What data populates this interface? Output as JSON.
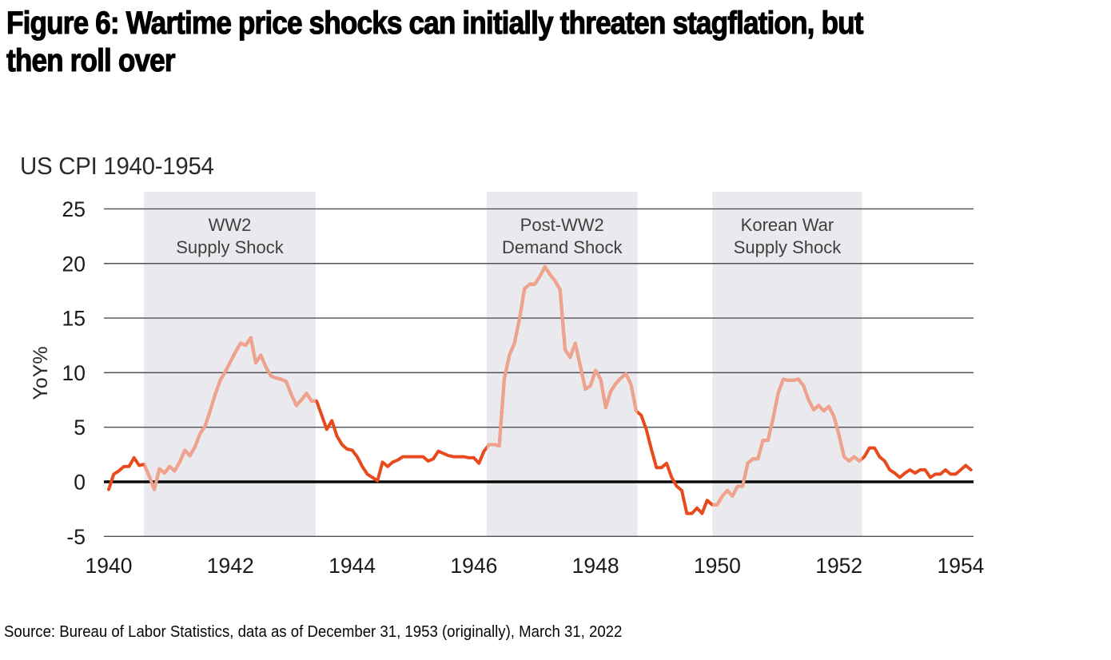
{
  "header": {
    "title_line1": "Figure 6: Wartime price shocks can initially threaten stagflation, but",
    "title_line2": "then roll over"
  },
  "chart": {
    "subtitle": "US CPI 1940-1954",
    "y_axis_label": "YoY%",
    "source": "Source: Bureau of Labor Statistics, data as of December 31, 1953 (originally), March 31, 2022"
  },
  "colors": {
    "line": "#e84a1e",
    "line_shaded": "#efa28d",
    "band": "#eaeaee",
    "grid": "#4f4f55",
    "zero_line": "#0a0a0a",
    "tick_text": "#1a1a1a",
    "band_label": "#3f3f3f",
    "subtitle_text": "#2b2b2b"
  },
  "chart_data": {
    "type": "line",
    "title": "US CPI 1940-1954",
    "xlabel": "",
    "ylabel": "YoY%",
    "x_start_year": 1940,
    "x_step_months": 1,
    "x_end": "1954-03",
    "xlim": [
      1939.95,
      1954.3
    ],
    "ylim": [
      -5,
      25
    ],
    "grid": "horizontal",
    "legend": "none",
    "y_ticks": [
      25,
      20,
      15,
      10,
      5,
      0,
      -5
    ],
    "x_tick_labels": [
      "1940",
      "1942",
      "1944",
      "1946",
      "1948",
      "1950",
      "1952",
      "1954"
    ],
    "series": [
      {
        "name": "US CPI YoY %",
        "frequency": "monthly Jan 1940 - Mar 1954",
        "values": [
          -0.7,
          0.7,
          1.0,
          1.4,
          1.4,
          2.2,
          1.5,
          1.6,
          0.5,
          -0.7,
          1.2,
          0.8,
          1.4,
          1.0,
          1.8,
          2.9,
          2.4,
          3.2,
          4.4,
          5.1,
          6.5,
          8.0,
          9.3,
          10.1,
          11.0,
          11.9,
          12.7,
          12.5,
          13.2,
          10.9,
          11.6,
          10.5,
          9.7,
          9.5,
          9.4,
          9.2,
          8.0,
          7.0,
          7.5,
          8.1,
          7.4,
          7.4,
          6.1,
          4.8,
          5.6,
          4.2,
          3.4,
          3.0,
          2.9,
          2.3,
          1.4,
          0.7,
          0.4,
          0.1,
          1.8,
          1.4,
          1.8,
          2.0,
          2.3,
          2.3,
          2.3,
          2.3,
          2.3,
          1.9,
          2.1,
          2.8,
          2.6,
          2.4,
          2.3,
          2.3,
          2.3,
          2.2,
          2.2,
          1.7,
          2.8,
          3.4,
          3.4,
          3.3,
          9.4,
          11.6,
          12.7,
          14.9,
          17.7,
          18.1,
          18.1,
          18.8,
          19.7,
          19.0,
          18.4,
          17.6,
          12.1,
          11.4,
          12.7,
          10.6,
          8.5,
          8.8,
          10.2,
          9.4,
          6.8,
          8.3,
          9.0,
          9.5,
          9.9,
          8.9,
          6.5,
          6.1,
          4.8,
          3.0,
          1.3,
          1.3,
          1.7,
          0.4,
          -0.4,
          -0.8,
          -2.9,
          -2.9,
          -2.4,
          -2.9,
          -1.7,
          -2.1,
          -2.1,
          -1.3,
          -0.8,
          -1.3,
          -0.4,
          -0.4,
          1.7,
          2.1,
          2.1,
          3.8,
          3.8,
          5.8,
          8.1,
          9.4,
          9.3,
          9.3,
          9.4,
          8.8,
          7.5,
          6.6,
          7.0,
          6.5,
          6.9,
          6.0,
          4.3,
          2.3,
          1.9,
          2.3,
          1.9,
          2.3,
          3.1,
          3.1,
          2.3,
          1.9,
          1.1,
          0.8,
          0.4,
          0.8,
          1.1,
          0.8,
          1.1,
          1.1,
          0.4,
          0.7,
          0.7,
          1.1,
          0.7,
          0.7,
          1.1,
          1.5,
          1.1
        ]
      }
    ],
    "annotations": [
      {
        "label_line1": "WW2",
        "label_line2": "Supply Shock",
        "start": 1940.58,
        "end": 1943.4
      },
      {
        "label_line1": "Post-WW2",
        "label_line2": "Demand Shock",
        "start": 1946.21,
        "end": 1948.69
      },
      {
        "label_line1": "Korean War",
        "label_line2": "Supply Shock",
        "start": 1949.92,
        "end": 1952.38
      }
    ]
  }
}
